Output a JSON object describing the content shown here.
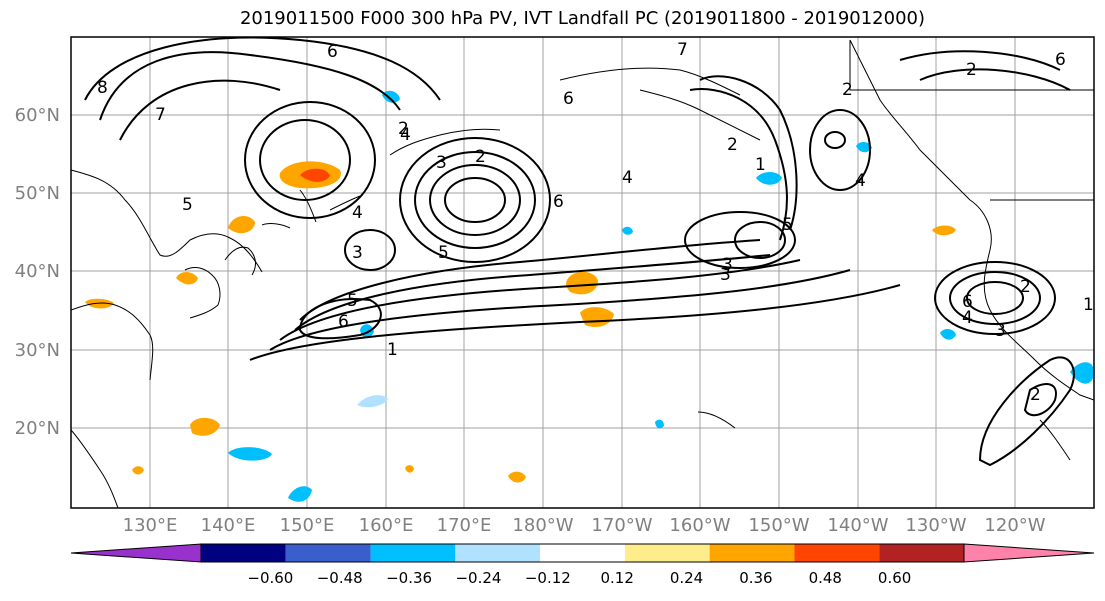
{
  "title": "2019011500 F000 300 hPa PV, IVT Landfall PC (2019011800 - 2019012000)",
  "longitude_labels": [
    "130°E",
    "140°E",
    "150°E",
    "160°E",
    "170°E",
    "180°W",
    "170°W",
    "160°W",
    "150°W",
    "140°W",
    "130°W",
    "120°W"
  ],
  "latitude_labels": [
    "60°N",
    "50°N",
    "40°N",
    "30°N",
    "20°N"
  ],
  "colorbar": {
    "tick_labels": [
      "−0.60",
      "−0.48",
      "−0.36",
      "−0.24",
      "−0.12",
      "0.12",
      "0.24",
      "0.36",
      "0.48",
      "0.60"
    ],
    "colors": [
      "#9932cc",
      "#000080",
      "#3a5fcd",
      "#00bfff",
      "#b0e2ff",
      "#ffffff",
      "#ffec8b",
      "#ffa500",
      "#ff4500",
      "#b22222",
      "#ff82ab"
    ]
  },
  "contour_labels": [
    "8",
    "7",
    "6",
    "5",
    "4",
    "3",
    "2",
    "1",
    "6",
    "5",
    "4",
    "3",
    "2",
    "6",
    "5",
    "4",
    "3",
    "2",
    "1",
    "7",
    "6",
    "5",
    "4",
    "3",
    "2",
    "6",
    "4",
    "3",
    "2",
    "2",
    "1",
    "6",
    "2"
  ],
  "colors": {
    "contour": "#000000",
    "grid": "#a0a0a0",
    "coast": "#000000"
  }
}
